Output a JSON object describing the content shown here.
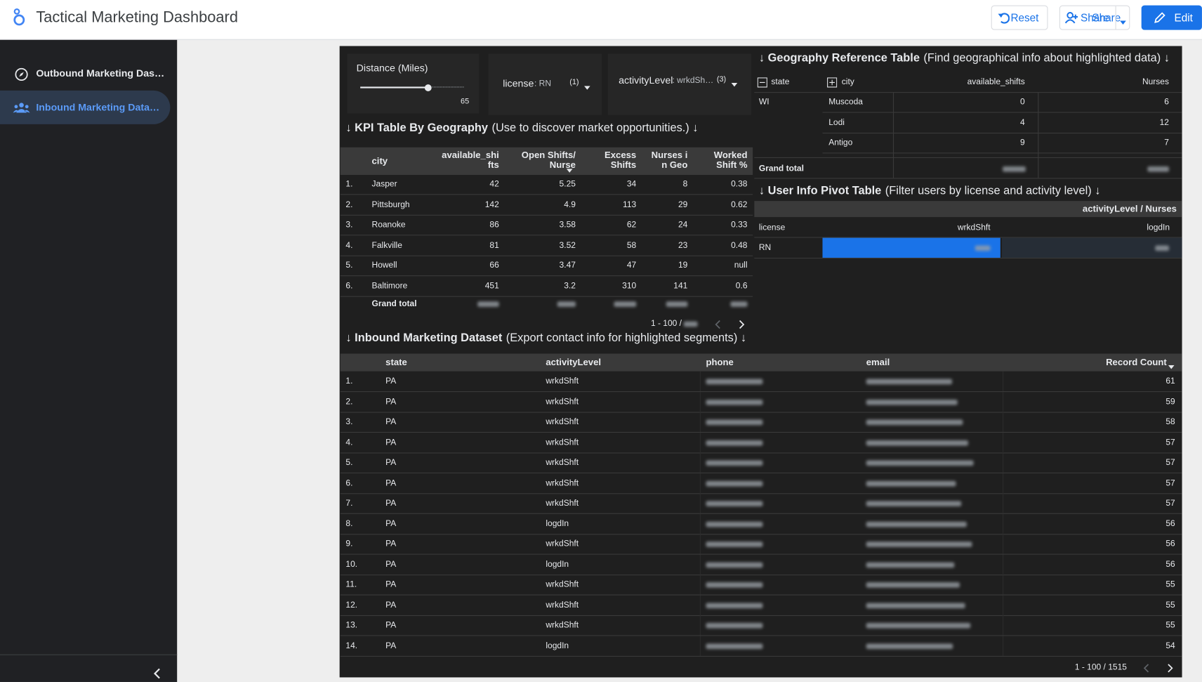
{
  "header": {
    "title": "Tactical Marketing Dashboard",
    "reset": "Reset",
    "share": "Share",
    "edit": "Edit"
  },
  "sidebar": {
    "pages": [
      "Outbound Marketing Das…",
      "Inbound Marketing Data…"
    ]
  },
  "filters": {
    "distance_label": "Distance (Miles)",
    "distance_value": 65,
    "license_label": "license",
    "license_value": ": RN",
    "license_count": "(1)",
    "activity_label": "activityLevel",
    "activity_value": ": wrkdSh…",
    "activity_count": "(3)"
  },
  "kpi": {
    "title": "↓ KPI Table By Geography",
    "subtitle": "(Use to discover market opportunities.) ↓",
    "columns": [
      "city",
      "available_shifts",
      "Open Shifts/ Nurse",
      "Excess Shifts",
      "Nurses in Geo",
      "Worked Shift %"
    ],
    "rows": [
      {
        "n": "1.",
        "city": "Jasper",
        "available_shifts": 42,
        "open_per_nurse": 5.25,
        "excess": 34,
        "nurses": 8,
        "worked": 0.38
      },
      {
        "n": "2.",
        "city": "Pittsburgh",
        "available_shifts": 142,
        "open_per_nurse": 4.9,
        "excess": 113,
        "nurses": 29,
        "worked": 0.62
      },
      {
        "n": "3.",
        "city": "Roanoke",
        "available_shifts": 86,
        "open_per_nurse": 3.58,
        "excess": 62,
        "nurses": 24,
        "worked": 0.33
      },
      {
        "n": "4.",
        "city": "Falkville",
        "available_shifts": 81,
        "open_per_nurse": 3.52,
        "excess": 58,
        "nurses": 23,
        "worked": 0.48
      },
      {
        "n": "5.",
        "city": "Howell",
        "available_shifts": 66,
        "open_per_nurse": 3.47,
        "excess": 47,
        "nurses": 19,
        "worked": "null"
      },
      {
        "n": "6.",
        "city": "Baltimore",
        "available_shifts": 451,
        "open_per_nurse": 3.2,
        "excess": 310,
        "nurses": 141,
        "worked": 0.6
      }
    ],
    "total_label": "Grand total",
    "pagination": "1 - 100 /"
  },
  "geo": {
    "title": "↓ Geography Reference Table",
    "subtitle": "(Find geographical info about highlighted data) ↓",
    "columns": [
      "state",
      "city",
      "available_shifts",
      "Nurses"
    ],
    "groups": [
      {
        "state": "WI",
        "rows": [
          {
            "city": "Muscoda",
            "available_shifts": 0,
            "nurses": 6
          },
          {
            "city": "Lodi",
            "available_shifts": 4,
            "nurses": 12
          },
          {
            "city": "Antigo",
            "available_shifts": 9,
            "nurses": 7
          }
        ]
      }
    ],
    "total_label": "Grand total"
  },
  "pivot": {
    "title": "↓ User Info Pivot Table",
    "subtitle": "(Filter users by license and activity level) ↓",
    "header": "activityLevel / Nurses",
    "row_header": "license",
    "columns": [
      "wrkdShft",
      "logdIn"
    ],
    "rows": [
      "RN"
    ]
  },
  "dataset": {
    "title": "↓ Inbound Marketing Dataset",
    "subtitle": "(Export contact info for highlighted segments) ↓",
    "columns": [
      "state",
      "activityLevel",
      "phone",
      "email",
      "Record Count"
    ],
    "rows": [
      {
        "n": "1.",
        "state": "PA",
        "activityLevel": "wrkdShft",
        "record_count": 61
      },
      {
        "n": "2.",
        "state": "PA",
        "activityLevel": "wrkdShft",
        "record_count": 59
      },
      {
        "n": "3.",
        "state": "PA",
        "activityLevel": "wrkdShft",
        "record_count": 58
      },
      {
        "n": "4.",
        "state": "PA",
        "activityLevel": "wrkdShft",
        "record_count": 57
      },
      {
        "n": "5.",
        "state": "PA",
        "activityLevel": "wrkdShft",
        "record_count": 57
      },
      {
        "n": "6.",
        "state": "PA",
        "activityLevel": "wrkdShft",
        "record_count": 57
      },
      {
        "n": "7.",
        "state": "PA",
        "activityLevel": "wrkdShft",
        "record_count": 57
      },
      {
        "n": "8.",
        "state": "PA",
        "activityLevel": "logdIn",
        "record_count": 56
      },
      {
        "n": "9.",
        "state": "PA",
        "activityLevel": "wrkdShft",
        "record_count": 56
      },
      {
        "n": "10.",
        "state": "PA",
        "activityLevel": "logdIn",
        "record_count": 56
      },
      {
        "n": "11.",
        "state": "PA",
        "activityLevel": "wrkdShft",
        "record_count": 55
      },
      {
        "n": "12.",
        "state": "PA",
        "activityLevel": "wrkdShft",
        "record_count": 55
      },
      {
        "n": "13.",
        "state": "PA",
        "activityLevel": "wrkdShft",
        "record_count": 55
      },
      {
        "n": "14.",
        "state": "PA",
        "activityLevel": "logdIn",
        "record_count": 54
      }
    ],
    "pagination": "1 - 100 / 1515"
  }
}
